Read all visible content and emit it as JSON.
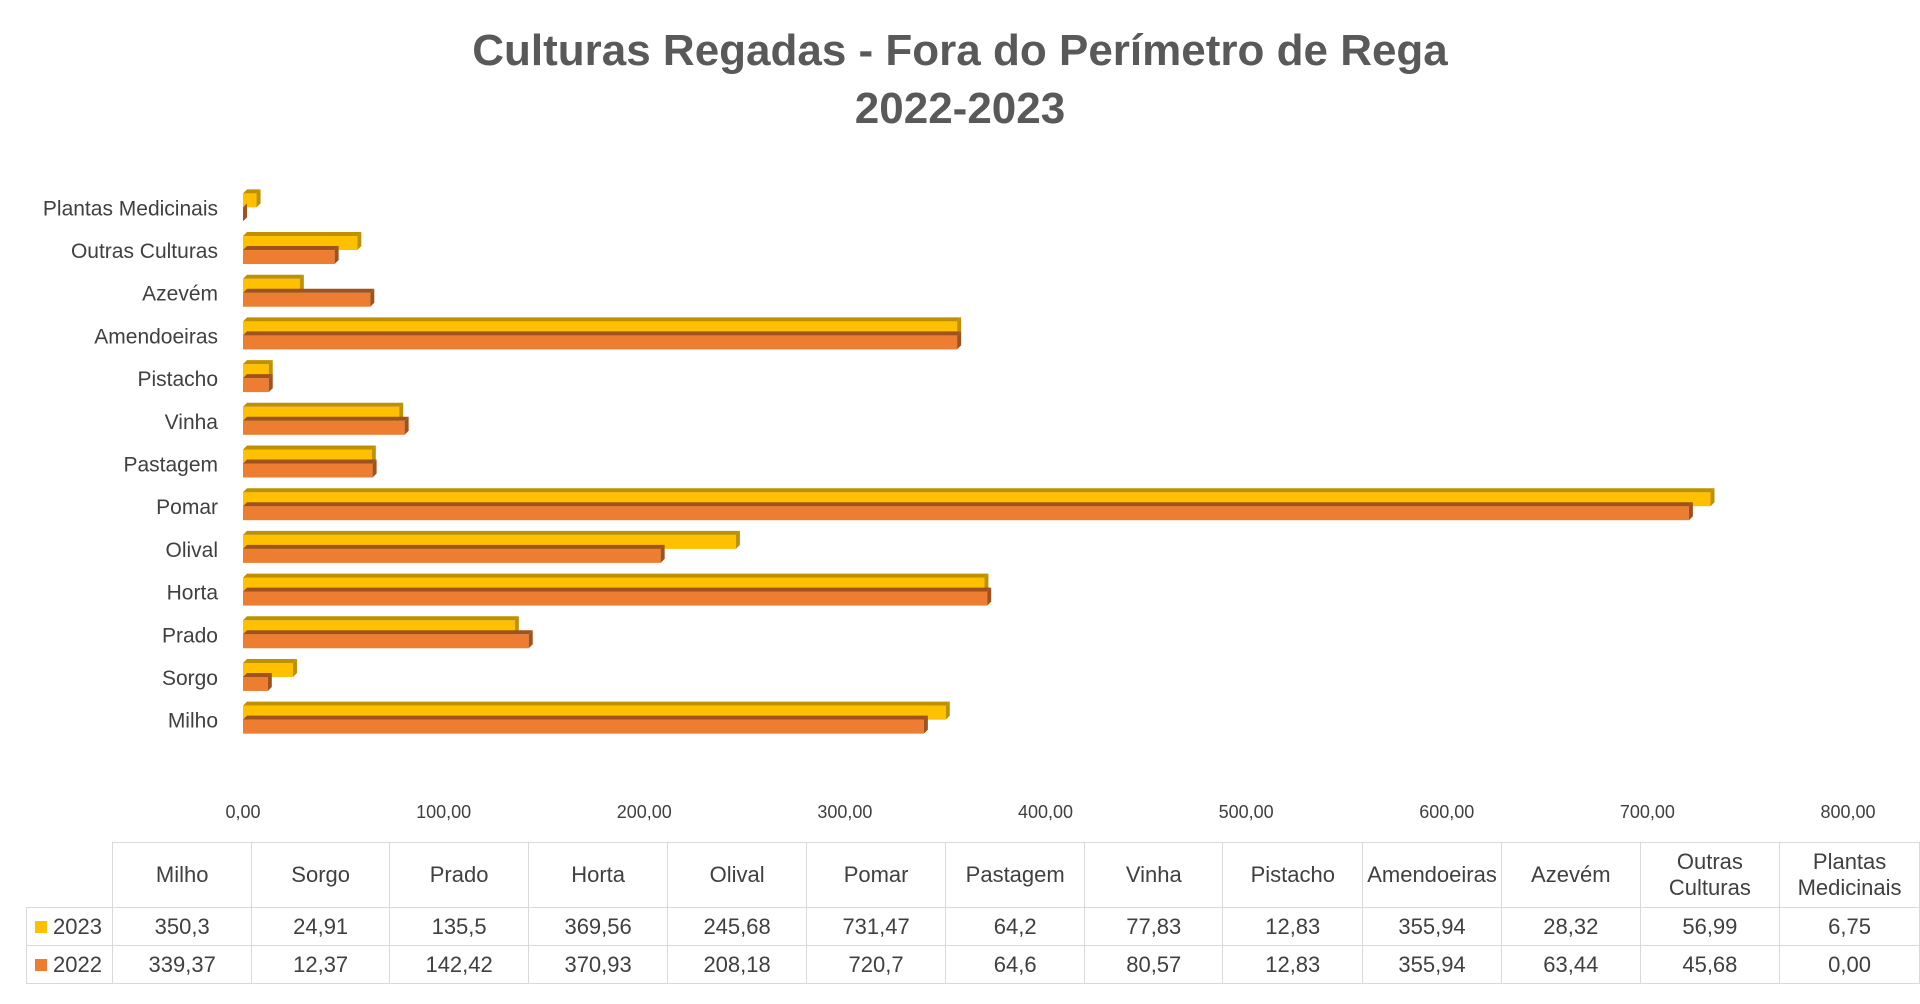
{
  "title": "Culturas Regadas - Fora do Perímetro de Rega",
  "subtitle": "2022-2023",
  "colors": {
    "2023": "#FFC000",
    "2022": "#ED7D31",
    "2023_side": "#BF9000",
    "2022_side": "#A0521C"
  },
  "chart_data": {
    "type": "bar",
    "orientation": "horizontal",
    "categories": [
      "Milho",
      "Sorgo",
      "Prado",
      "Horta",
      "Olival",
      "Pomar",
      "Pastagem",
      "Vinha",
      "Pistacho",
      "Amendoeiras",
      "Azevém",
      "Outras Culturas",
      "Plantas Medicinais"
    ],
    "series": [
      {
        "name": "2023",
        "values": [
          350.3,
          24.91,
          135.5,
          369.56,
          245.68,
          731.47,
          64.2,
          77.83,
          12.83,
          355.94,
          28.32,
          56.99,
          6.75
        ]
      },
      {
        "name": "2022",
        "values": [
          339.37,
          12.37,
          142.42,
          370.93,
          208.18,
          720.7,
          64.6,
          80.57,
          12.83,
          355.94,
          63.44,
          45.68,
          0.0
        ]
      }
    ],
    "xlim": [
      0,
      800
    ],
    "x_ticks": [
      "0,00",
      "100,00",
      "200,00",
      "300,00",
      "400,00",
      "500,00",
      "600,00",
      "700,00",
      "800,00"
    ],
    "grid": false,
    "legend": "data-table"
  },
  "table": {
    "headers": [
      "Milho",
      "Sorgo",
      "Prado",
      "Horta",
      "Olival",
      "Pomar",
      "Pastagem",
      "Vinha",
      "Pistacho",
      "Amendoeiras",
      "Azevém",
      "Outras Culturas",
      "Plantas Medicinais"
    ],
    "rows": [
      {
        "label": "2023",
        "cells": [
          "350,3",
          "24,91",
          "135,5",
          "369,56",
          "245,68",
          "731,47",
          "64,2",
          "77,83",
          "12,83",
          "355,94",
          "28,32",
          "56,99",
          "6,75"
        ]
      },
      {
        "label": "2022",
        "cells": [
          "339,37",
          "12,37",
          "142,42",
          "370,93",
          "208,18",
          "720,7",
          "64,6",
          "80,57",
          "12,83",
          "355,94",
          "63,44",
          "45,68",
          "0,00"
        ]
      }
    ]
  }
}
